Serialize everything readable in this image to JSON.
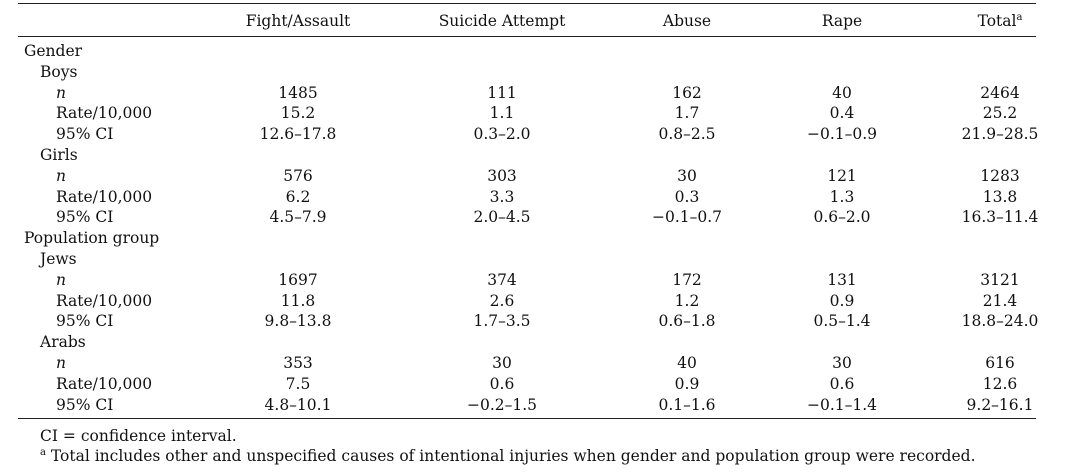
{
  "table": {
    "columns": [
      "Fight/Assault",
      "Suicide Attempt",
      "Abuse",
      "Rape",
      "Total"
    ],
    "total_marker": "a",
    "sections": [
      {
        "label": "Gender",
        "groups": [
          {
            "label": "Boys",
            "rows": [
              {
                "label": "n",
                "values": [
                  "1485",
                  "111",
                  "162",
                  "40",
                  "2464"
                ]
              },
              {
                "label": "Rate/10,000",
                "values": [
                  "15.2",
                  "1.1",
                  "1.7",
                  "0.4",
                  "25.2"
                ]
              },
              {
                "label": "95% CI",
                "values": [
                  "12.6–17.8",
                  "0.3–2.0",
                  "0.8–2.5",
                  "−0.1–0.9",
                  "21.9–28.5"
                ]
              }
            ]
          },
          {
            "label": "Girls",
            "rows": [
              {
                "label": "n",
                "values": [
                  "576",
                  "303",
                  "30",
                  "121",
                  "1283"
                ]
              },
              {
                "label": "Rate/10,000",
                "values": [
                  "6.2",
                  "3.3",
                  "0.3",
                  "1.3",
                  "13.8"
                ]
              },
              {
                "label": "95% CI",
                "values": [
                  "4.5–7.9",
                  "2.0–4.5",
                  "−0.1–0.7",
                  "0.6–2.0",
                  "16.3–11.4"
                ]
              }
            ]
          }
        ]
      },
      {
        "label": "Population group",
        "groups": [
          {
            "label": "Jews",
            "rows": [
              {
                "label": "n",
                "values": [
                  "1697",
                  "374",
                  "172",
                  "131",
                  "3121"
                ]
              },
              {
                "label": "Rate/10,000",
                "values": [
                  "11.8",
                  "2.6",
                  "1.2",
                  "0.9",
                  "21.4"
                ]
              },
              {
                "label": "95% CI",
                "values": [
                  "9.8–13.8",
                  "1.7–3.5",
                  "0.6–1.8",
                  "0.5–1.4",
                  "18.8–24.0"
                ]
              }
            ]
          },
          {
            "label": "Arabs",
            "rows": [
              {
                "label": "n",
                "values": [
                  "353",
                  "30",
                  "40",
                  "30",
                  "616"
                ]
              },
              {
                "label": "Rate/10,000",
                "values": [
                  "7.5",
                  "0.6",
                  "0.9",
                  "0.6",
                  "12.6"
                ]
              },
              {
                "label": "95% CI",
                "values": [
                  "4.8–10.1",
                  "−0.2–1.5",
                  "0.1–1.6",
                  "−0.1–1.4",
                  "9.2–16.1"
                ]
              }
            ]
          }
        ]
      }
    ]
  },
  "footnotes": {
    "ci": "CI = confidence interval.",
    "a_marker": "a",
    "a_text": "Total includes other and unspecified causes of intentional injuries when gender and population group were recorded."
  }
}
